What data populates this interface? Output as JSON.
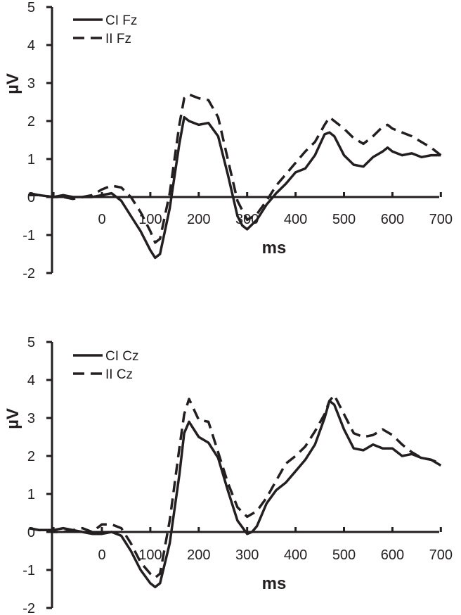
{
  "chart_data": [
    {
      "type": "line",
      "ylabel": "µV",
      "xlabel": "ms",
      "xlim": [
        -150,
        700
      ],
      "ylim": [
        -2,
        5
      ],
      "x_ticks": [
        "0",
        "100",
        "200",
        "300",
        "400",
        "500",
        "600",
        "700"
      ],
      "y_ticks": [
        "5",
        "4",
        "3",
        "2",
        "1",
        "0",
        "-1",
        "-2"
      ],
      "legend_position": "top-left",
      "series": [
        {
          "name": "CI Fz",
          "style": "solid",
          "x": [
            -150,
            -130,
            -100,
            -80,
            -60,
            -40,
            -20,
            0,
            20,
            40,
            60,
            80,
            100,
            110,
            120,
            140,
            160,
            170,
            180,
            200,
            220,
            240,
            260,
            280,
            290,
            300,
            320,
            340,
            360,
            380,
            400,
            420,
            440,
            460,
            470,
            480,
            500,
            520,
            540,
            560,
            580,
            590,
            600,
            620,
            640,
            660,
            680,
            700
          ],
          "y": [
            0.1,
            0.05,
            0.0,
            0.05,
            0.0,
            0.0,
            0.0,
            0.05,
            0.1,
            -0.1,
            -0.5,
            -0.9,
            -1.4,
            -1.6,
            -1.5,
            -0.3,
            1.4,
            2.1,
            2.0,
            1.9,
            1.95,
            1.6,
            0.6,
            -0.5,
            -0.75,
            -0.85,
            -0.6,
            -0.2,
            0.1,
            0.35,
            0.65,
            0.75,
            1.1,
            1.65,
            1.7,
            1.6,
            1.1,
            0.85,
            0.8,
            1.05,
            1.2,
            1.3,
            1.2,
            1.1,
            1.15,
            1.05,
            1.1,
            1.1
          ]
        },
        {
          "name": "II Fz",
          "style": "dashed",
          "x": [
            -150,
            -130,
            -100,
            -80,
            -60,
            -40,
            -20,
            0,
            20,
            40,
            60,
            80,
            100,
            110,
            120,
            140,
            160,
            170,
            180,
            200,
            220,
            240,
            260,
            280,
            300,
            320,
            340,
            360,
            380,
            400,
            420,
            440,
            460,
            470,
            480,
            500,
            520,
            540,
            560,
            580,
            590,
            600,
            620,
            640,
            660,
            680,
            700
          ],
          "y": [
            0.05,
            0.05,
            0.0,
            0.0,
            -0.05,
            0.0,
            0.05,
            0.2,
            0.3,
            0.25,
            0.0,
            -0.4,
            -0.9,
            -1.2,
            -1.1,
            0.1,
            1.9,
            2.6,
            2.7,
            2.6,
            2.55,
            2.1,
            1.0,
            -0.1,
            -0.6,
            -0.45,
            -0.1,
            0.3,
            0.6,
            0.9,
            1.2,
            1.45,
            1.9,
            2.1,
            2.0,
            1.8,
            1.55,
            1.4,
            1.6,
            1.85,
            1.9,
            1.8,
            1.7,
            1.6,
            1.45,
            1.3,
            1.1
          ]
        }
      ]
    },
    {
      "type": "line",
      "ylabel": "µV",
      "xlabel": "ms",
      "xlim": [
        -150,
        700
      ],
      "ylim": [
        -2,
        5
      ],
      "x_ticks": [
        "0",
        "100",
        "200",
        "300",
        "400",
        "500",
        "600",
        "700"
      ],
      "y_ticks": [
        "5",
        "4",
        "3",
        "2",
        "1",
        "0",
        "-1",
        "-2"
      ],
      "legend_position": "top-left",
      "series": [
        {
          "name": "CI Cz",
          "style": "solid",
          "x": [
            -150,
            -130,
            -100,
            -80,
            -60,
            -40,
            -20,
            0,
            20,
            40,
            60,
            80,
            100,
            110,
            120,
            140,
            160,
            170,
            180,
            200,
            220,
            240,
            260,
            280,
            300,
            310,
            320,
            340,
            360,
            380,
            400,
            420,
            440,
            460,
            470,
            480,
            500,
            520,
            540,
            560,
            580,
            600,
            620,
            640,
            660,
            680,
            700
          ],
          "y": [
            0.1,
            0.05,
            0.05,
            0.1,
            0.05,
            0.0,
            -0.05,
            -0.05,
            0.0,
            -0.1,
            -0.5,
            -1.0,
            -1.35,
            -1.45,
            -1.35,
            -0.3,
            1.5,
            2.6,
            2.9,
            2.5,
            2.35,
            1.95,
            1.1,
            0.3,
            -0.05,
            0.0,
            0.15,
            0.75,
            1.1,
            1.3,
            1.6,
            1.9,
            2.3,
            3.0,
            3.45,
            3.35,
            2.7,
            2.2,
            2.15,
            2.3,
            2.2,
            2.2,
            2.0,
            2.05,
            1.95,
            1.9,
            1.75
          ]
        },
        {
          "name": "II Cz",
          "style": "dashed",
          "x": [
            -150,
            -130,
            -100,
            -80,
            -60,
            -40,
            -20,
            0,
            20,
            40,
            60,
            80,
            100,
            110,
            120,
            140,
            160,
            170,
            180,
            200,
            220,
            240,
            260,
            280,
            300,
            320,
            340,
            360,
            380,
            400,
            420,
            440,
            460,
            470,
            480,
            500,
            520,
            540,
            560,
            580,
            600,
            620,
            640,
            660,
            680,
            700
          ],
          "y": [
            0.1,
            0.05,
            0.0,
            0.0,
            0.05,
            0.1,
            0.0,
            0.2,
            0.2,
            0.1,
            -0.3,
            -0.8,
            -1.1,
            -1.2,
            -1.1,
            0.3,
            2.2,
            3.1,
            3.5,
            2.95,
            2.9,
            2.1,
            1.3,
            0.65,
            0.4,
            0.55,
            0.9,
            1.35,
            1.8,
            2.0,
            2.25,
            2.65,
            3.1,
            3.45,
            3.6,
            3.1,
            2.6,
            2.5,
            2.55,
            2.7,
            2.55,
            2.3,
            2.1,
            1.95,
            1.9,
            1.8
          ]
        }
      ]
    }
  ]
}
